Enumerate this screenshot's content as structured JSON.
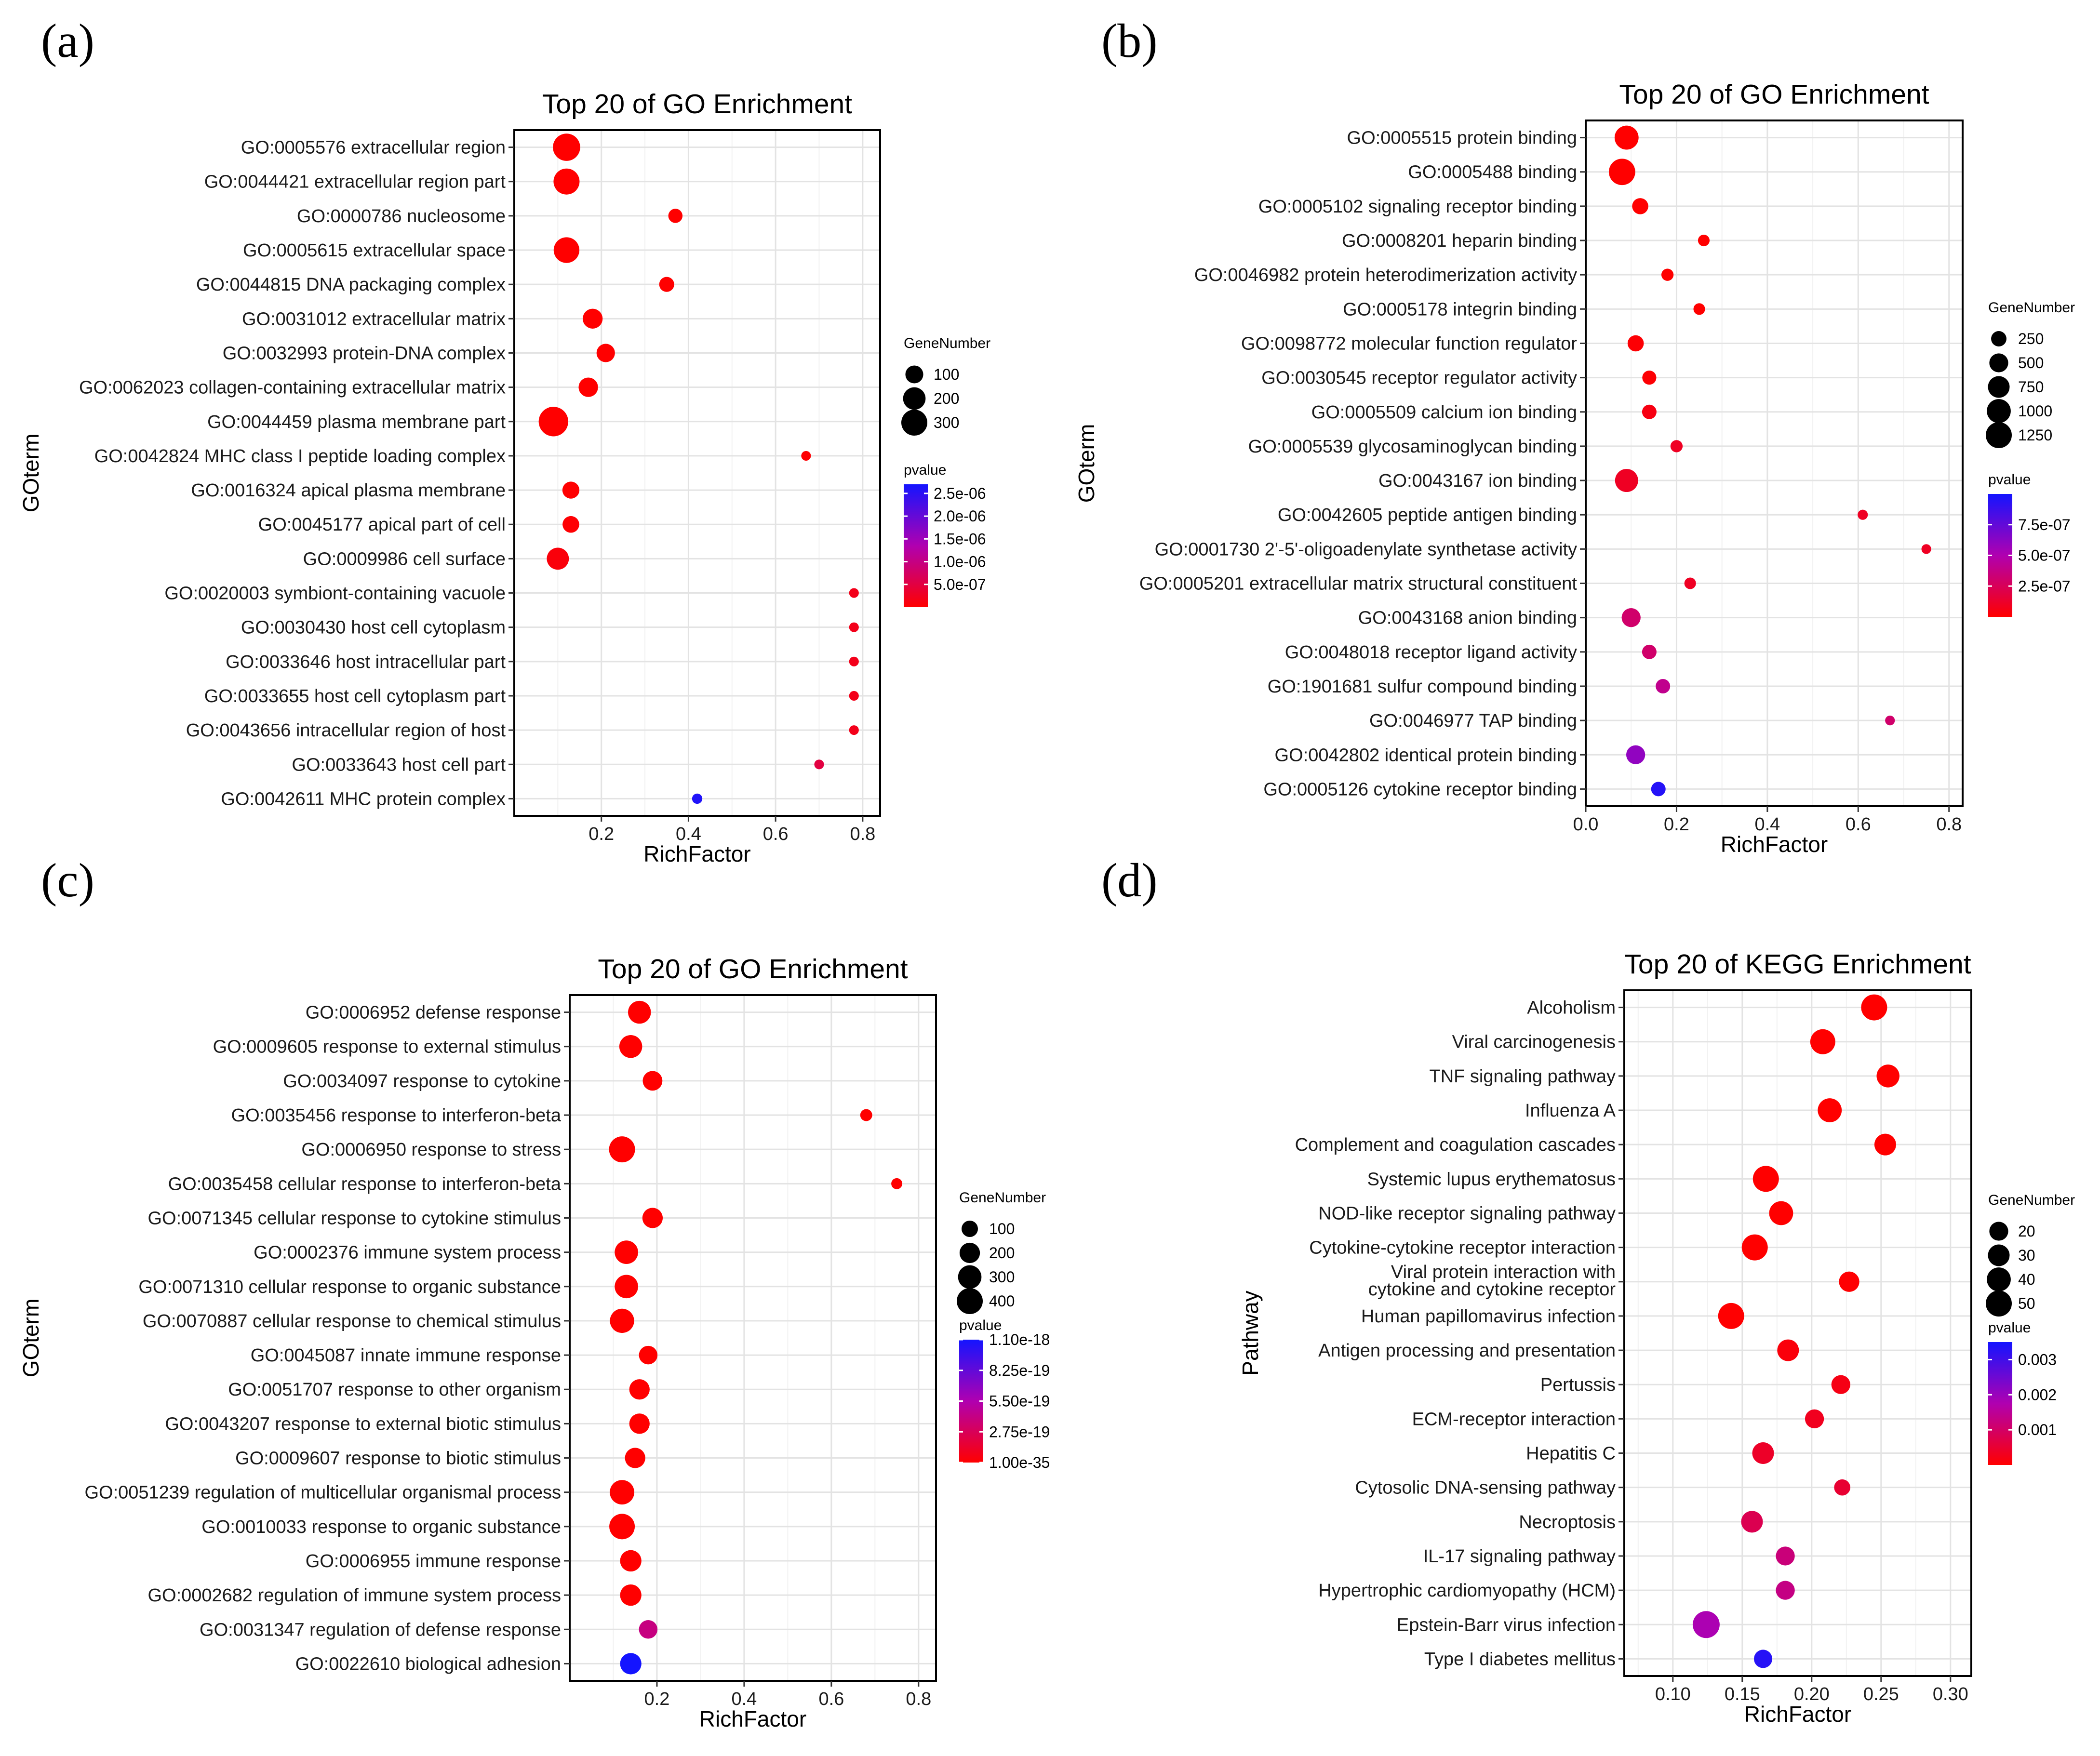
{
  "panels": [
    {
      "letter": "(a)",
      "chart_data": {
        "type": "scatter",
        "title": "Top 20 of GO Enrichment",
        "xlabel": "RichFactor",
        "ylabel": "GOterm",
        "xlim": [
          0.0,
          0.84
        ],
        "xticks": [
          0.2,
          0.4,
          0.6,
          0.8
        ],
        "xtick_labels": [
          "0.2",
          "0.4",
          "0.6",
          "0.8"
        ],
        "categories": [
          "GO:0005576 extracellular region",
          "GO:0044421 extracellular region part",
          "GO:0000786 nucleosome",
          "GO:0005615 extracellular space",
          "GO:0044815 DNA packaging complex",
          "GO:0031012 extracellular matrix",
          "GO:0032993 protein-DNA complex",
          "GO:0062023 collagen-containing extracellular matrix",
          "GO:0044459 plasma membrane part",
          "GO:0042824 MHC class I peptide loading complex",
          "GO:0016324 apical plasma membrane",
          "GO:0045177 apical part of cell",
          "GO:0009986 cell surface",
          "GO:0020003 symbiont-containing vacuole",
          "GO:0030430 host cell cytoplasm",
          "GO:0033646 host intracellular part",
          "GO:0033655 host cell cytoplasm part",
          "GO:0043656 intracellular region of host",
          "GO:0033643 host cell part",
          "GO:0042611 MHC protein complex"
        ],
        "rich_factor": [
          0.12,
          0.12,
          0.37,
          0.12,
          0.35,
          0.18,
          0.21,
          0.17,
          0.09,
          0.67,
          0.13,
          0.13,
          0.1,
          0.78,
          0.78,
          0.78,
          0.78,
          0.78,
          0.7,
          0.42
        ],
        "gene_number": [
          340,
          300,
          45,
          290,
          55,
          140,
          110,
          130,
          420,
          7,
          85,
          80,
          190,
          7,
          7,
          7,
          7,
          7,
          7,
          10
        ],
        "pvalue": [
          1e-12,
          1e-12,
          1e-09,
          1e-12,
          1e-09,
          1e-10,
          1e-10,
          1e-10,
          1e-10,
          2e-08,
          1e-08,
          2e-08,
          8e-08,
          2e-07,
          2e-07,
          2e-07,
          2e-07,
          2e-07,
          5e-07,
          2.6e-06
        ],
        "size_legend": {
          "title": "GeneNumber",
          "values": [
            100,
            200,
            300
          ],
          "labels": [
            "100",
            "200",
            "300"
          ]
        },
        "color_legend": {
          "title": "pvalue",
          "min": 0,
          "max": 2.7e-06,
          "ticks": [
            5e-07,
            1e-06,
            1.5e-06,
            2e-06,
            2.5e-06
          ],
          "labels": [
            "5.0e-07",
            "1.0e-06",
            "1.5e-06",
            "2.0e-06",
            "2.5e-06"
          ]
        }
      }
    },
    {
      "letter": "(b)",
      "chart_data": {
        "type": "scatter",
        "title": "Top 20 of GO Enrichment",
        "xlabel": "RichFactor",
        "ylabel": "GOterm",
        "xlim": [
          0.0,
          0.83
        ],
        "xticks": [
          0.0,
          0.2,
          0.4,
          0.6,
          0.8
        ],
        "xtick_labels": [
          "0.0",
          "0.2",
          "0.4",
          "0.6",
          "0.8"
        ],
        "categories": [
          "GO:0005515 protein binding",
          "GO:0005488 binding",
          "GO:0005102 signaling receptor binding",
          "GO:0008201 heparin binding",
          "GO:0046982 protein heterodimerization activity",
          "GO:0005178 integrin binding",
          "GO:0098772 molecular function regulator",
          "GO:0030545 receptor regulator activity",
          "GO:0005509 calcium ion binding",
          "GO:0005539 glycosaminoglycan binding",
          "GO:0043167 ion binding",
          "GO:0042605 peptide antigen binding",
          "GO:0001730 2'-5'-oligoadenylate synthetase activity",
          "GO:0005201 extracellular matrix structural constituent",
          "GO:0043168 anion binding",
          "GO:0048018 receptor ligand activity",
          "GO:1901681 sulfur compound binding",
          "GO:0046977 TAP binding",
          "GO:0042802 identical protein binding",
          "GO:0005126 cytokine receptor binding"
        ],
        "rich_factor": [
          0.09,
          0.08,
          0.12,
          0.26,
          0.18,
          0.25,
          0.11,
          0.14,
          0.14,
          0.2,
          0.09,
          0.61,
          0.75,
          0.23,
          0.1,
          0.14,
          0.17,
          0.67,
          0.11,
          0.16
        ],
        "gene_number": [
          1000,
          1300,
          300,
          80,
          100,
          80,
          300,
          180,
          200,
          100,
          900,
          40,
          30,
          80,
          500,
          200,
          200,
          30,
          500,
          200
        ],
        "pvalue": [
          1e-12,
          1e-12,
          1e-10,
          1e-09,
          1e-09,
          1e-09,
          1e-08,
          1e-08,
          5e-08,
          1e-07,
          1e-07,
          1e-07,
          1e-07,
          1e-07,
          3e-07,
          3e-07,
          4e-07,
          3e-07,
          6e-07,
          9.5e-07
        ],
        "size_legend": {
          "title": "GeneNumber",
          "values": [
            250,
            500,
            750,
            1000,
            1250
          ],
          "labels": [
            "250",
            "500",
            "750",
            "1000",
            "1250"
          ]
        },
        "color_legend": {
          "title": "pvalue",
          "min": 0,
          "max": 1e-06,
          "ticks": [
            2.5e-07,
            5e-07,
            7.5e-07
          ],
          "labels": [
            "2.5e-07",
            "5.0e-07",
            "7.5e-07"
          ]
        }
      }
    },
    {
      "letter": "(c)",
      "chart_data": {
        "type": "scatter",
        "title": "Top 20 of GO Enrichment",
        "xlabel": "RichFactor",
        "ylabel": "GOterm",
        "xlim": [
          0.0,
          0.84
        ],
        "xticks": [
          0.2,
          0.4,
          0.6,
          0.8
        ],
        "xtick_labels": [
          "0.2",
          "0.4",
          "0.6",
          "0.8"
        ],
        "categories": [
          "GO:0006952 defense response",
          "GO:0009605 response to external stimulus",
          "GO:0034097 response to cytokine",
          "GO:0035456 response to interferon-beta",
          "GO:0006950 response to stress",
          "GO:0035458 cellular response to interferon-beta",
          "GO:0071345 cellular response to cytokine stimulus",
          "GO:0002376 immune system process",
          "GO:0071310 cellular response to organic substance",
          "GO:0070887 cellular response to chemical stimulus",
          "GO:0045087 innate immune response",
          "GO:0051707 response to other organism",
          "GO:0043207 response to external biotic stimulus",
          "GO:0009607 response to biotic stimulus",
          "GO:0051239 regulation of multicellular organismal process",
          "GO:0010033 response to organic substance",
          "GO:0006955 immune response",
          "GO:0002682 regulation of immune system process",
          "GO:0031347 regulation of defense response",
          "GO:0022610 biological adhesion"
        ],
        "rich_factor": [
          0.16,
          0.14,
          0.19,
          0.68,
          0.12,
          0.75,
          0.19,
          0.13,
          0.13,
          0.12,
          0.18,
          0.16,
          0.16,
          0.15,
          0.12,
          0.12,
          0.14,
          0.14,
          0.18,
          0.14
        ],
        "gene_number": [
          280,
          280,
          180,
          30,
          400,
          20,
          200,
          300,
          300,
          330,
          150,
          200,
          200,
          200,
          340,
          380,
          230,
          230,
          150,
          230
        ],
        "pvalue": [
          1e-35,
          1e-35,
          1e-34,
          1e-33,
          1e-30,
          1e-29,
          1e-28,
          1e-27,
          1e-26,
          1e-25,
          1e-25,
          1e-24,
          1e-24,
          1e-24,
          1e-23,
          1e-23,
          1e-22,
          1e-21,
          4e-19,
          1.1e-18
        ],
        "size_legend": {
          "title": "GeneNumber",
          "values": [
            100,
            200,
            300,
            400
          ],
          "labels": [
            "100",
            "200",
            "300",
            "400"
          ]
        },
        "color_legend": {
          "title": "pvalue",
          "min": 0,
          "max": 1.1e-18,
          "ticks": [
            0,
            2.75e-19,
            5.5e-19,
            8.25e-19,
            1.1e-18
          ],
          "labels": [
            "1.00e-35",
            "2.75e-19",
            "5.50e-19",
            "8.25e-19",
            "1.10e-18"
          ]
        }
      }
    },
    {
      "letter": "(d)",
      "chart_data": {
        "type": "scatter",
        "title": "Top 20 of KEGG Enrichment",
        "xlabel": "RichFactor",
        "ylabel": "Pathway",
        "xlim": [
          0.065,
          0.315
        ],
        "xticks": [
          0.1,
          0.15,
          0.2,
          0.25,
          0.3
        ],
        "xtick_labels": [
          "0.10",
          "0.15",
          "0.20",
          "0.25",
          "0.30"
        ],
        "categories": [
          "Alcoholism",
          "Viral carcinogenesis",
          "TNF signaling pathway",
          "Influenza A",
          "Complement and coagulation cascades",
          "Systemic lupus erythematosus",
          "NOD-like receptor signaling pathway",
          "Cytokine-cytokine receptor interaction",
          "Viral protein interaction with\ncytokine and cytokine receptor",
          "Human papillomavirus infection",
          "Antigen processing and presentation",
          "Pertussis",
          "ECM-receptor interaction",
          "Hepatitis C",
          "Cytosolic DNA-sensing pathway",
          "Necroptosis",
          "IL-17 signaling pathway",
          "Hypertrophic cardiomyopathy (HCM)",
          "Epstein-Barr virus infection",
          "Type I diabetes mellitus"
        ],
        "rich_factor": [
          0.245,
          0.208,
          0.255,
          0.213,
          0.253,
          0.167,
          0.178,
          0.159,
          0.227,
          0.142,
          0.183,
          0.221,
          0.202,
          0.165,
          0.222,
          0.157,
          0.181,
          0.181,
          0.124,
          0.165
        ],
        "gene_number": [
          50,
          45,
          35,
          40,
          30,
          50,
          40,
          50,
          25,
          50,
          30,
          20,
          20,
          30,
          12,
          30,
          20,
          20,
          55,
          18
        ],
        "pvalue": [
          1e-06,
          1e-06,
          1e-06,
          1e-06,
          1e-06,
          1e-06,
          1e-06,
          1e-06,
          2e-05,
          1e-05,
          0.0001,
          0.0002,
          0.0003,
          0.0004,
          0.0005,
          0.0008,
          0.0012,
          0.0013,
          0.0018,
          0.0033
        ],
        "size_legend": {
          "title": "GeneNumber",
          "values": [
            20,
            30,
            40,
            50
          ],
          "labels": [
            "20",
            "30",
            "40",
            "50"
          ]
        },
        "color_legend": {
          "title": "pvalue",
          "min": 0,
          "max": 0.0035,
          "ticks": [
            0.001,
            0.002,
            0.003
          ],
          "labels": [
            "0.001",
            "0.002",
            "0.003"
          ]
        }
      }
    }
  ]
}
